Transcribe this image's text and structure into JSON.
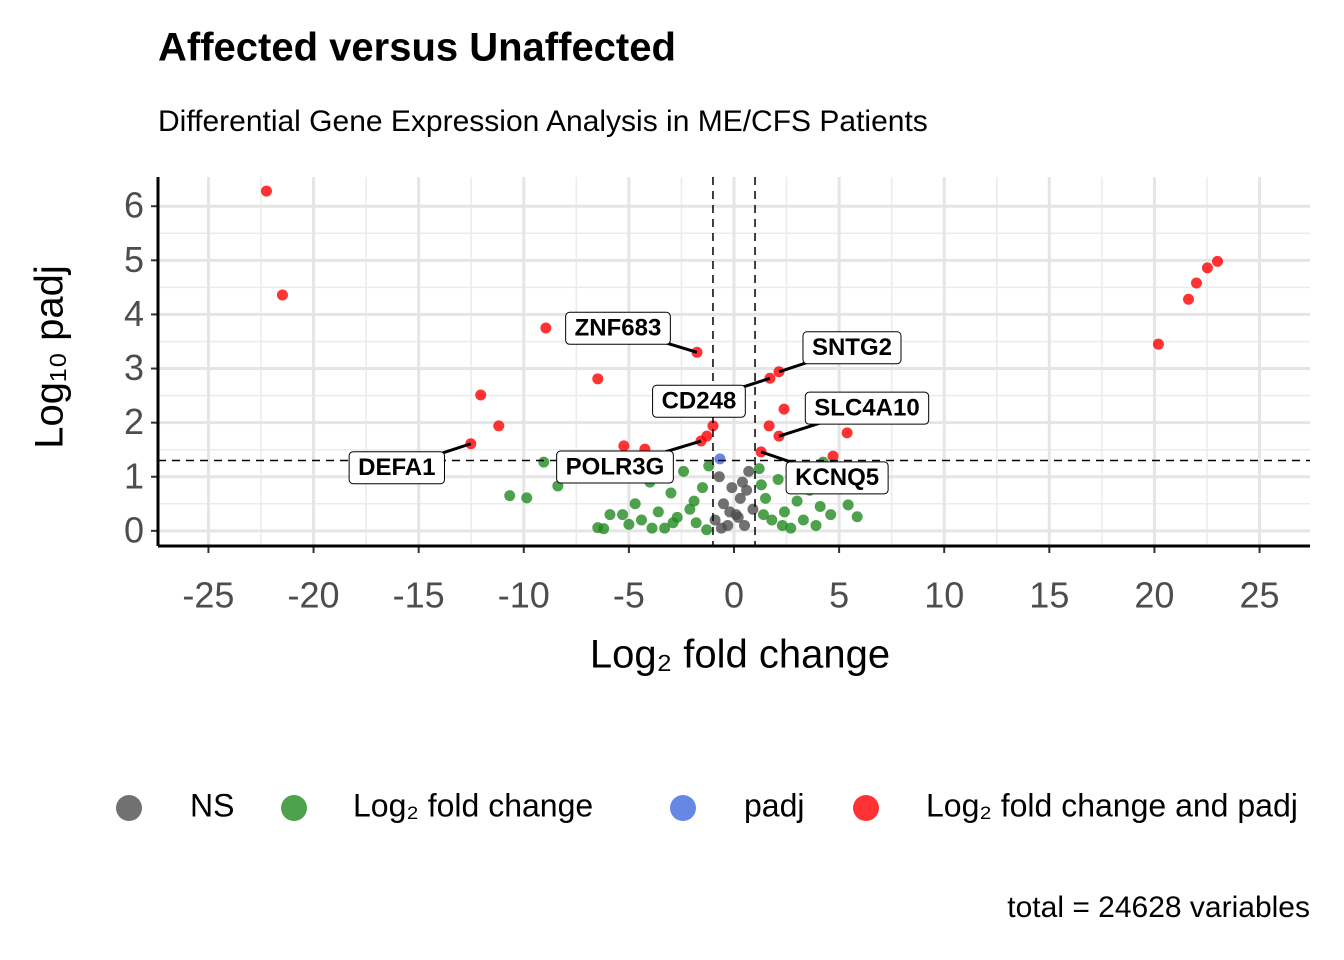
{
  "chart_data": {
    "type": "scatter",
    "title": "Affected versus Unaffected",
    "subtitle": "Differential Gene Expression Analysis in ME/CFS Patients",
    "x_label": "Log₂ fold change",
    "y_label": "Log₁₀ padj",
    "caption": "total = 24628 variables",
    "xlim": [
      -27.4,
      27.4
    ],
    "ylim": [
      -0.28,
      6.54
    ],
    "xticks": [
      -25,
      -20,
      -15,
      -10,
      -5,
      0,
      5,
      10,
      15,
      20,
      25
    ],
    "yticks": [
      0,
      1,
      2,
      3,
      4,
      5,
      6
    ],
    "grid": true,
    "vlines": [
      -1,
      1
    ],
    "hline": 1.3,
    "legend": "bottom",
    "series": [
      {
        "name": "NS",
        "color": "#4d4d4d",
        "x": [
          -0.9,
          -0.7,
          -0.5,
          -0.3,
          -0.1,
          0.1,
          0.3,
          0.5,
          0.7,
          0.9,
          -0.6,
          0.2,
          0.6,
          -0.2,
          0.4
        ],
        "values": [
          0.2,
          1.0,
          0.5,
          0.1,
          0.8,
          0.3,
          0.6,
          0.1,
          1.1,
          0.4,
          0.05,
          0.25,
          0.75,
          0.35,
          0.9
        ]
      },
      {
        "name": "Log₂ fold change",
        "color": "#228b22",
        "x": [
          -10.67,
          -9.86,
          -9.05,
          -8.38,
          -6.48,
          -6.2,
          -5.3,
          -5.0,
          -4.7,
          -4.4,
          -4.0,
          -3.6,
          -3.3,
          -3.0,
          -2.7,
          -2.4,
          -2.1,
          -1.8,
          -1.5,
          -1.2,
          1.2,
          1.5,
          1.8,
          2.1,
          2.4,
          2.7,
          3.0,
          3.3,
          3.6,
          3.9,
          4.24,
          4.6,
          5.43,
          5.86,
          -4.8,
          -3.9,
          -2.9,
          -1.9,
          1.4,
          2.3,
          3.2,
          4.1,
          -1.3,
          1.3,
          -5.9
        ],
        "values": [
          0.65,
          0.61,
          1.27,
          0.83,
          0.06,
          0.04,
          0.3,
          0.12,
          0.5,
          0.2,
          0.9,
          0.35,
          0.05,
          0.7,
          0.25,
          1.1,
          0.4,
          0.15,
          0.8,
          1.2,
          1.15,
          0.6,
          0.2,
          0.95,
          0.35,
          0.05,
          0.55,
          0.2,
          0.75,
          0.1,
          1.27,
          0.3,
          0.48,
          0.26,
          1.0,
          0.05,
          0.15,
          0.55,
          0.3,
          0.1,
          0.9,
          0.45,
          0.02,
          0.85,
          0.3
        ]
      },
      {
        "name": "padj",
        "color": "#4169e1",
        "x": [
          -0.67
        ],
        "values": [
          1.33
        ]
      },
      {
        "name": "Log₂ fold change and padj",
        "color": "#ff0000",
        "x": [
          -22.24,
          -21.48,
          -8.95,
          -6.48,
          -12.05,
          -11.19,
          -12.52,
          -1.76,
          -1.0,
          -1.29,
          -1.57,
          -5.24,
          -4.24,
          1.71,
          2.14,
          2.38,
          1.67,
          2.14,
          1.29,
          5.38,
          4.71,
          20.19,
          21.62,
          22.0,
          22.52,
          23.0
        ],
        "values": [
          6.28,
          4.36,
          3.75,
          2.81,
          2.51,
          1.94,
          1.61,
          3.3,
          1.94,
          1.75,
          1.66,
          1.57,
          1.51,
          2.82,
          2.94,
          2.25,
          1.94,
          1.75,
          1.46,
          1.81,
          1.38,
          3.45,
          4.28,
          4.58,
          4.86,
          4.98
        ]
      }
    ],
    "annotations": [
      {
        "text": "ZNF683",
        "x": -1.76,
        "y": 3.3
      },
      {
        "text": "SNTG2",
        "x": 2.14,
        "y": 2.94
      },
      {
        "text": "CD248",
        "x": 1.71,
        "y": 2.82
      },
      {
        "text": "SLC4A10",
        "x": 2.14,
        "y": 1.75
      },
      {
        "text": "DEFA1",
        "x": -12.52,
        "y": 1.61
      },
      {
        "text": "POLR3G",
        "x": -1.57,
        "y": 1.66
      },
      {
        "text": "KCNQ5",
        "x": 1.29,
        "y": 1.46
      }
    ]
  }
}
